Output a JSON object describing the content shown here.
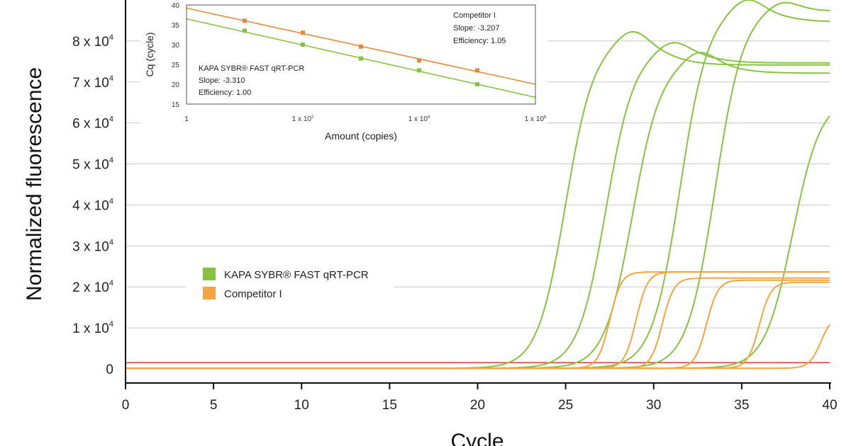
{
  "chart_data": [
    {
      "type": "line",
      "xlabel": "Cycle",
      "ylabel": "Normalized fluorescence",
      "xlim": [
        0,
        40
      ],
      "ylim": [
        0,
        90000
      ],
      "x_ticks": [
        0,
        5,
        10,
        15,
        20,
        25,
        30,
        35,
        40
      ],
      "y_ticks": [
        {
          "value": 0,
          "mantissa": "0",
          "exp": ""
        },
        {
          "value": 10000,
          "mantissa": "1 x 10",
          "exp": "4"
        },
        {
          "value": 20000,
          "mantissa": "2 x 10",
          "exp": "4"
        },
        {
          "value": 30000,
          "mantissa": "3 x 10",
          "exp": "4"
        },
        {
          "value": 40000,
          "mantissa": "4 x 10",
          "exp": "4"
        },
        {
          "value": 50000,
          "mantissa": "5 x 10",
          "exp": "4"
        },
        {
          "value": 60000,
          "mantissa": "6 x 10",
          "exp": "4"
        },
        {
          "value": 70000,
          "mantissa": "7 x 10",
          "exp": "4"
        },
        {
          "value": 80000,
          "mantissa": "8 x 10",
          "exp": "4"
        }
      ],
      "grid": true,
      "threshold": {
        "y": 1500,
        "color": "#e04040"
      },
      "legend_position": "center-left",
      "series": [
        {
          "name": "KAPA SYBR® FAST qRT-PCR",
          "color": "#86c440",
          "curves": [
            {
              "midpoint": 25.0,
              "plateau": 80000,
              "slope": 0.8,
              "overshoot": 3500,
              "dip": 6000
            },
            {
              "midpoint": 27.3,
              "plateau": 78000,
              "slope": 0.8,
              "overshoot": 2500,
              "dip": 3500
            },
            {
              "midpoint": 28.8,
              "plateau": 75000,
              "slope": 0.8,
              "overshoot": 3000,
              "dip": 3000
            },
            {
              "midpoint": 31.5,
              "plateau": 88000,
              "slope": 0.8,
              "overshoot": 3000,
              "dip": 3500
            },
            {
              "midpoint": 33.5,
              "plateau": 88000,
              "slope": 0.8,
              "overshoot": 2000,
              "dip": 1000
            },
            {
              "midpoint": 37.9,
              "plateau": 66000,
              "slope": 0.8,
              "overshoot": 0,
              "dip": 0
            }
          ]
        },
        {
          "name": "Competitor I",
          "color": "#f5a540",
          "curves": [
            {
              "midpoint": 27.5,
              "plateau": 23500,
              "slope": 0.33
            },
            {
              "midpoint": 29.0,
              "plateau": 23500,
              "slope": 0.33
            },
            {
              "midpoint": 30.5,
              "plateau": 22000,
              "slope": 0.33
            },
            {
              "midpoint": 33.0,
              "plateau": 21500,
              "slope": 0.33
            },
            {
              "midpoint": 36.0,
              "plateau": 21000,
              "slope": 0.33
            },
            {
              "midpoint": 39.5,
              "plateau": 13000,
              "slope": 0.33
            }
          ]
        }
      ]
    },
    {
      "type": "scatter",
      "xlabel": "Amount (copies)",
      "ylabel": "Cq (cycle)",
      "xscale": "log",
      "xlim": [
        1,
        1000000
      ],
      "ylim": [
        15,
        40
      ],
      "x_ticks": [
        {
          "value": 1,
          "mantissa": "1",
          "exp": ""
        },
        {
          "value": 100,
          "mantissa": "1 x 10",
          "exp": "2"
        },
        {
          "value": 10000,
          "mantissa": "1 x 10",
          "exp": "4"
        },
        {
          "value": 1000000,
          "mantissa": "1 x 10",
          "exp": "6"
        }
      ],
      "y_ticks": [
        15,
        20,
        25,
        30,
        35,
        40
      ],
      "series": [
        {
          "name": "Competitor I",
          "color": "#e8883a",
          "x": [
            10,
            100,
            1000,
            10000,
            100000
          ],
          "y": [
            36.0,
            33.0,
            29.5,
            26.0,
            23.5
          ],
          "fit": {
            "x": [
              1,
              1000000
            ],
            "y": [
              39.2,
              20.0
            ]
          },
          "note": [
            "Competitor I",
            "Slope: -3.207",
            "Efficiency: 1.05"
          ]
        },
        {
          "name": "KAPA SYBR® FAST qRT-PCR",
          "color": "#86c440",
          "x": [
            10,
            100,
            1000,
            10000,
            100000
          ],
          "y": [
            33.5,
            30.0,
            26.5,
            23.5,
            20.0
          ],
          "fit": {
            "x": [
              1,
              1000000
            ],
            "y": [
              36.5,
              16.7
            ]
          },
          "note": [
            "KAPA SYBR® FAST qRT-PCR",
            "Slope: -3.310",
            "Efficiency: 1.00"
          ]
        }
      ]
    }
  ]
}
